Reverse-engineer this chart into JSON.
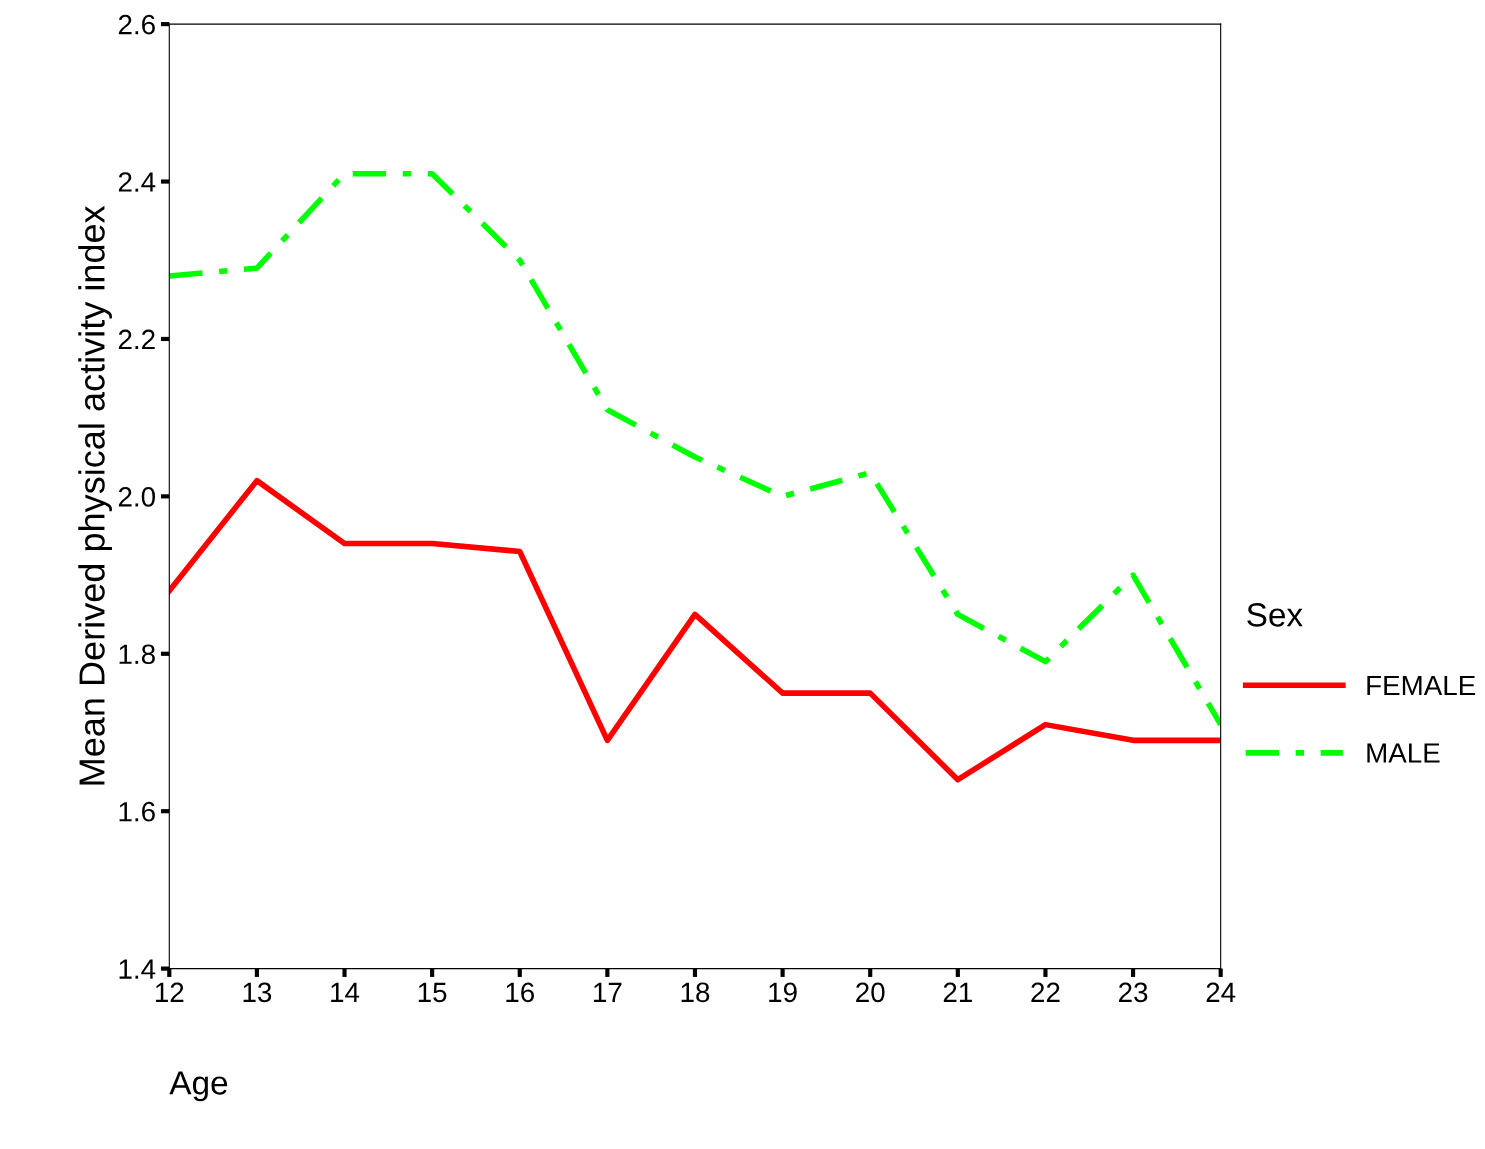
{
  "chart_data": {
    "type": "line",
    "xlabel": "Age",
    "ylabel": "Mean Derived physical activity index",
    "legend_title": "Sex",
    "legend": "right",
    "x": [
      12,
      13,
      14,
      15,
      16,
      17,
      18,
      19,
      20,
      21,
      22,
      23,
      24
    ],
    "series": [
      {
        "name": "FEMALE",
        "color": "#ff0000",
        "line_style": "solid",
        "values": [
          1.88,
          2.02,
          1.94,
          1.94,
          1.93,
          1.69,
          1.85,
          1.75,
          1.75,
          1.64,
          1.71,
          1.69,
          1.69
        ]
      },
      {
        "name": "MALE",
        "color": "#00ff00",
        "line_style": "dashdot",
        "values": [
          2.28,
          2.29,
          2.41,
          2.41,
          2.3,
          2.11,
          2.05,
          2.0,
          2.03,
          1.85,
          1.79,
          1.9,
          1.71
        ]
      }
    ],
    "xlim": [
      12,
      24
    ],
    "xticks": [
      12,
      13,
      14,
      15,
      16,
      17,
      18,
      19,
      20,
      21,
      22,
      23,
      24
    ],
    "ylim": [
      1.4,
      2.6
    ],
    "yticks": [
      {
        "value": 1.4,
        "label": "1.4"
      },
      {
        "value": 1.6,
        "label": "1.6"
      },
      {
        "value": 1.8,
        "label": "1.8"
      },
      {
        "value": 2.0,
        "label": "2.0"
      },
      {
        "value": 2.2,
        "label": "2.2"
      },
      {
        "value": 2.4,
        "label": "2.4"
      },
      {
        "value": 2.6,
        "label": "2.6"
      }
    ],
    "grid": false
  }
}
